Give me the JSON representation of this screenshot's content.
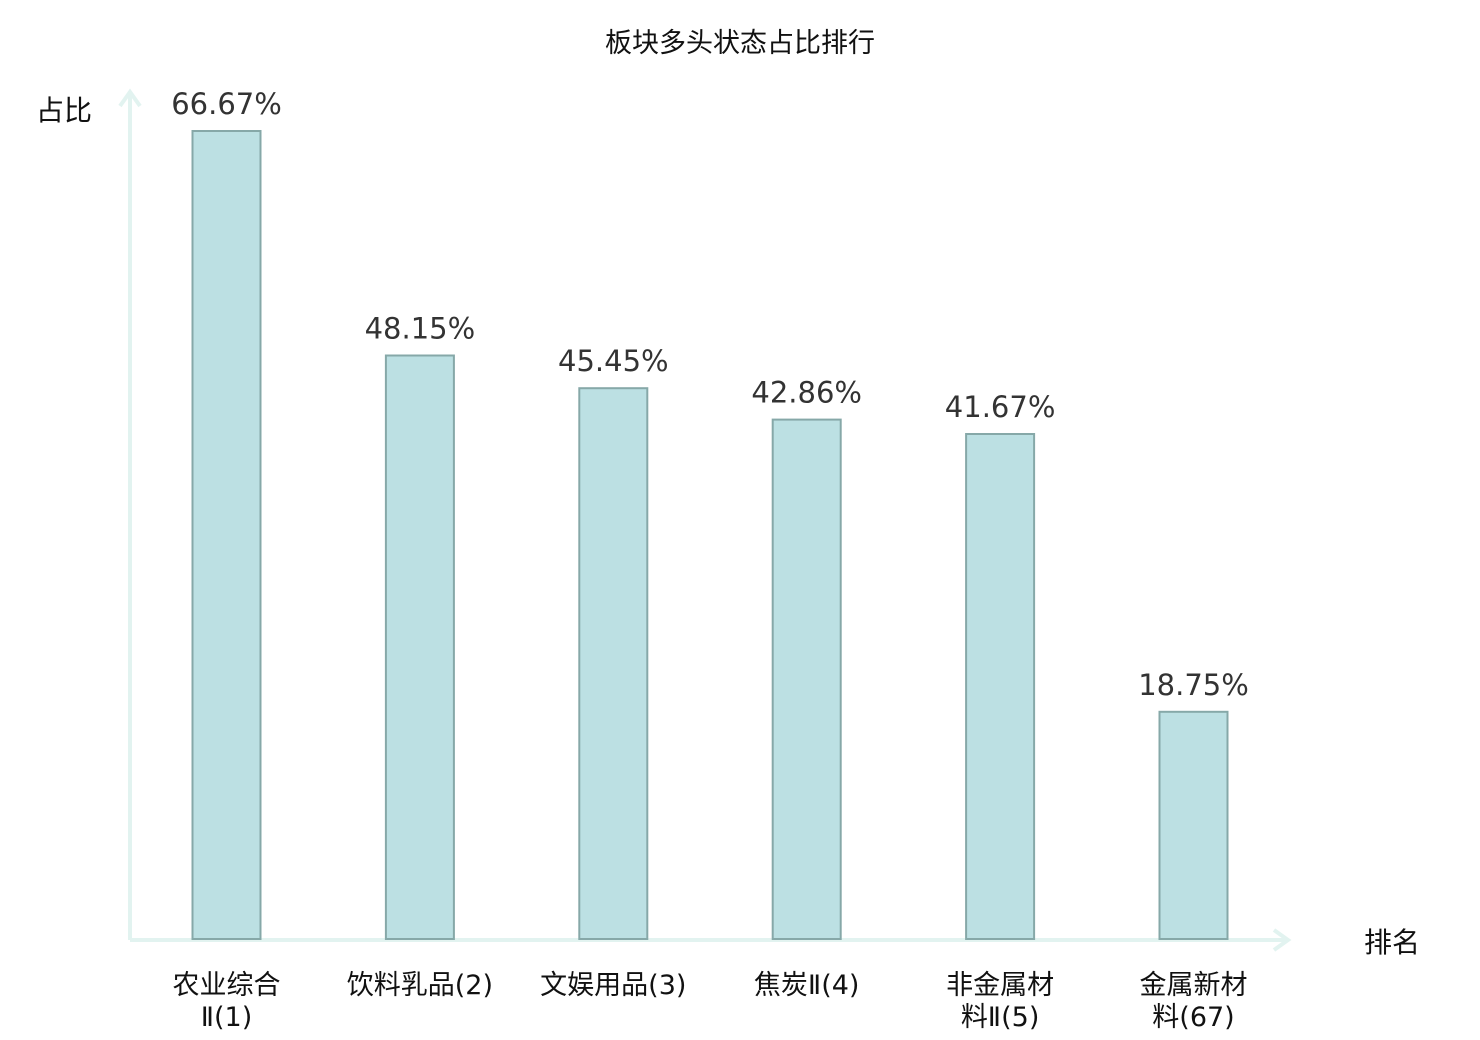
{
  "chart_data": {
    "type": "bar",
    "title": "板块多头状态占比排行",
    "ylabel": "占比",
    "xlabel": "排名",
    "categories": [
      [
        "农业综合",
        "Ⅱ(1)"
      ],
      [
        "饮料乳品(2)"
      ],
      [
        "文娱用品(3)"
      ],
      [
        "焦炭Ⅱ(4)"
      ],
      [
        "非金属材",
        "料Ⅱ(5)"
      ],
      [
        "金属新材",
        "料(67)"
      ]
    ],
    "values": [
      66.67,
      48.15,
      45.45,
      42.86,
      41.67,
      18.75
    ],
    "value_labels": [
      "66.67%",
      "48.15%",
      "45.45%",
      "42.86%",
      "41.67%",
      "18.75%"
    ],
    "highlight_index": 5,
    "colors": {
      "bar_fill": "#bce0e3",
      "bar_stroke": "#86a8a8",
      "axis": "#e2f3f0",
      "highlight_text": "#e0262a",
      "text": "#111111",
      "value_text": "#333333"
    },
    "ylim": [
      0,
      66.67
    ],
    "grid": false
  }
}
